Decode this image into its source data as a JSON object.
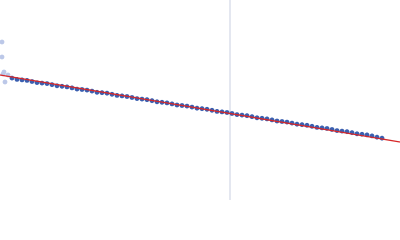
{
  "chart_data": {
    "type": "scatter",
    "xlim": [
      0,
      400
    ],
    "ylim": [
      0,
      200
    ],
    "vline": 230,
    "vline_color": "#c8cfe0",
    "series": [
      {
        "color": "#bcc8e8",
        "x": [
          2,
          2,
          4,
          5,
          8,
          3
        ],
        "values": [
          158,
          143,
          128,
          118,
          125,
          126
        ]
      },
      {
        "color": "#3a5fb0",
        "x": [
          12,
          17,
          22,
          27,
          32,
          37,
          42,
          47,
          52,
          57,
          62,
          67,
          72,
          77,
          82,
          87,
          92,
          97,
          102,
          107,
          112,
          117,
          122,
          127,
          132,
          137,
          142,
          147,
          152,
          157,
          162,
          167,
          172,
          177,
          182,
          187,
          192,
          197,
          202,
          207,
          212,
          217,
          222,
          227,
          232,
          237,
          242,
          247,
          252,
          257,
          262,
          267,
          272,
          277,
          282,
          287,
          292,
          297,
          302,
          307,
          312,
          317,
          322,
          327,
          332,
          337,
          342,
          347,
          352,
          357,
          362,
          367,
          372,
          377,
          382
        ],
        "values": [
          121.9,
          120.6,
          120.1,
          119.6,
          118.5,
          117.4,
          116.9,
          116.4,
          115.3,
          114.2,
          113.7,
          113.1,
          112.1,
          110.9,
          110.5,
          109.9,
          108.9,
          107.7,
          107.3,
          106.8,
          105.7,
          104.6,
          104.1,
          103.5,
          102.5,
          101.4,
          100.9,
          100.3,
          99.3,
          98.2,
          97.7,
          97.1,
          96.1,
          95.0,
          94.5,
          93.9,
          92.9,
          91.8,
          91.3,
          90.7,
          89.7,
          88.6,
          88.1,
          87.5,
          86.5,
          85.4,
          84.9,
          84.3,
          83.3,
          82.2,
          81.7,
          81.1,
          80.1,
          79.0,
          78.5,
          77.9,
          76.9,
          75.8,
          75.3,
          74.7,
          73.7,
          72.6,
          72.1,
          71.5,
          70.5,
          69.4,
          68.9,
          68.3,
          67.3,
          66.2,
          65.7,
          65.1,
          64.1,
          62.8,
          61.8
        ]
      },
      {
        "type": "line",
        "color": "#d62728",
        "x": [
          0,
          400
        ],
        "values": [
          125,
          58
        ]
      }
    ]
  }
}
